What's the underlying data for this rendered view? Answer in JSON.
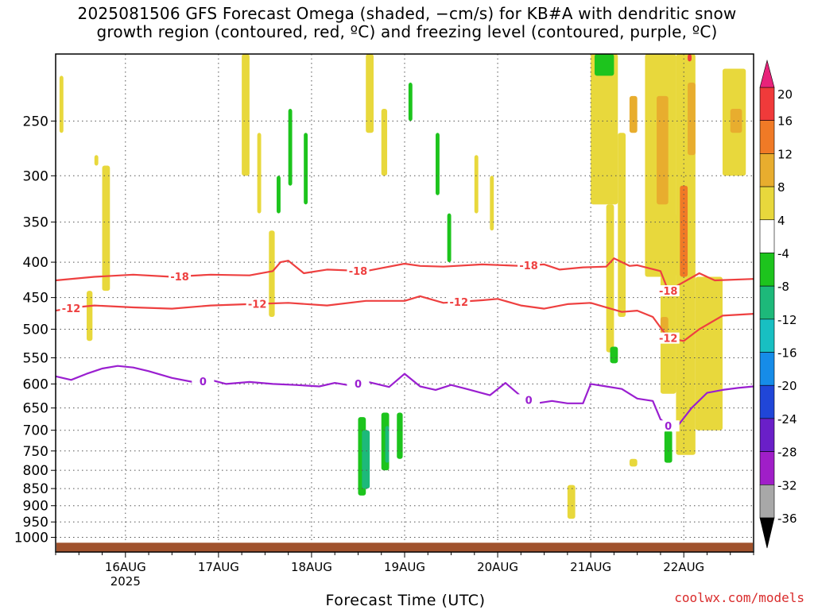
{
  "title": {
    "line1": "2025081506 GFS Forecast Omega (shaded, −cm/s) for KB#A with dendritic snow",
    "line2": "growth region (contoured, red, ºC) and freezing level (contoured, purple, ºC)"
  },
  "credit": "coolwx.com/models",
  "chart_data": {
    "type": "heatmap",
    "xlabel": "Forecast Time (UTC)",
    "x_ticks": [
      {
        "label": "16AUG",
        "sub": "2025",
        "t": 18
      },
      {
        "label": "17AUG",
        "sub": "",
        "t": 42
      },
      {
        "label": "18AUG",
        "sub": "",
        "t": 66
      },
      {
        "label": "19AUG",
        "sub": "",
        "t": 90
      },
      {
        "label": "20AUG",
        "sub": "",
        "t": 114
      },
      {
        "label": "21AUG",
        "sub": "",
        "t": 138
      },
      {
        "label": "22AUG",
        "sub": "",
        "t": 162
      }
    ],
    "x_range_hours": [
      0,
      180
    ],
    "y_axis": "pressure (hPa)",
    "y_scale": "log",
    "y_range": [
      1050,
      200
    ],
    "y_ticks": [
      250,
      300,
      350,
      400,
      450,
      500,
      550,
      600,
      650,
      700,
      750,
      800,
      850,
      900,
      950,
      1000
    ],
    "grid": true,
    "colorbar": {
      "labels": [
        20,
        16,
        12,
        8,
        4,
        -4,
        -8,
        -12,
        -16,
        -20,
        -24,
        -28,
        -32,
        -36
      ],
      "bins": [
        {
          "range": "16 to 20",
          "color": "#f03a3a"
        },
        {
          "range": "12 to 16",
          "color": "#f07a26"
        },
        {
          "range": "8 to 12",
          "color": "#e8ad2e"
        },
        {
          "range": "4 to 8",
          "color": "#e8d83c"
        },
        {
          "range": "-4 to 4",
          "color": "#ffffff"
        },
        {
          "range": "-8 to -4",
          "color": "#1dc41d"
        },
        {
          "range": "-12 to -8",
          "color": "#1db97a"
        },
        {
          "range": "-16 to -12",
          "color": "#18bfc2"
        },
        {
          "range": "-20 to -16",
          "color": "#168ce8"
        },
        {
          "range": "-24 to -20",
          "color": "#2046d8"
        },
        {
          "range": "-28 to -24",
          "color": "#6a1fc8"
        },
        {
          "range": "-32 to -28",
          "color": "#a01ec8"
        },
        {
          "range": "-36 to -32",
          "color": "#a8a8a8"
        }
      ],
      "over_color": "#e8237a",
      "under_color": "#000000"
    },
    "ground_color": "#a0522d",
    "contours": [
      {
        "name": "-18",
        "color": "#ee4040",
        "x": [
          0,
          10,
          20,
          30,
          40,
          50,
          56,
          58,
          60,
          64,
          70,
          80,
          90,
          94,
          100,
          110,
          120,
          126,
          130,
          136,
          142,
          144,
          148,
          150,
          156,
          158,
          166,
          170,
          180
        ],
        "y": [
          425,
          420,
          417,
          420,
          417,
          418,
          412,
          400,
          398,
          415,
          410,
          412,
          402,
          405,
          406,
          403,
          405,
          403,
          410,
          407,
          406,
          395,
          405,
          404,
          412,
          440,
          415,
          425,
          423
        ],
        "labels": [
          {
            "text": "-18",
            "x": 32
          },
          {
            "text": "-18",
            "x": 78
          },
          {
            "text": "-18",
            "x": 122
          },
          {
            "text": "-18",
            "x": 158
          }
        ]
      },
      {
        "name": "-12",
        "color": "#ee4040",
        "x": [
          0,
          5,
          10,
          20,
          30,
          40,
          50,
          60,
          70,
          80,
          90,
          94,
          100,
          110,
          114,
          120,
          126,
          132,
          138,
          146,
          150,
          154,
          158,
          162,
          166,
          172,
          180
        ],
        "y": [
          470,
          465,
          462,
          465,
          467,
          462,
          460,
          458,
          462,
          455,
          455,
          448,
          458,
          454,
          452,
          462,
          467,
          460,
          458,
          472,
          470,
          480,
          515,
          520,
          500,
          478,
          475
        ],
        "labels": [
          {
            "text": "-12",
            "x": 4
          },
          {
            "text": "-12",
            "x": 52
          },
          {
            "text": "-12",
            "x": 104
          },
          {
            "text": "-12",
            "x": 158
          }
        ]
      },
      {
        "name": "0",
        "color": "#9a1fd0",
        "x": [
          0,
          4,
          8,
          12,
          16,
          20,
          24,
          30,
          36,
          40,
          44,
          50,
          56,
          62,
          68,
          72,
          76,
          80,
          86,
          90,
          94,
          98,
          102,
          106,
          112,
          116,
          120,
          124,
          128,
          132,
          136,
          138,
          142,
          146,
          150,
          154,
          156,
          158,
          160,
          164,
          168,
          172,
          176,
          180
        ],
        "y": [
          585,
          592,
          580,
          570,
          565,
          568,
          575,
          588,
          597,
          592,
          600,
          596,
          600,
          602,
          605,
          598,
          603,
          595,
          606,
          580,
          605,
          612,
          602,
          610,
          623,
          598,
          625,
          640,
          635,
          640,
          640,
          600,
          605,
          610,
          630,
          635,
          675,
          690,
          695,
          650,
          618,
          612,
          608,
          605
        ],
        "labels": [
          {
            "text": "0",
            "x": 38
          },
          {
            "text": "0",
            "x": 78
          },
          {
            "text": "0",
            "x": 122
          },
          {
            "text": "0",
            "x": 158
          }
        ]
      }
    ]
  }
}
